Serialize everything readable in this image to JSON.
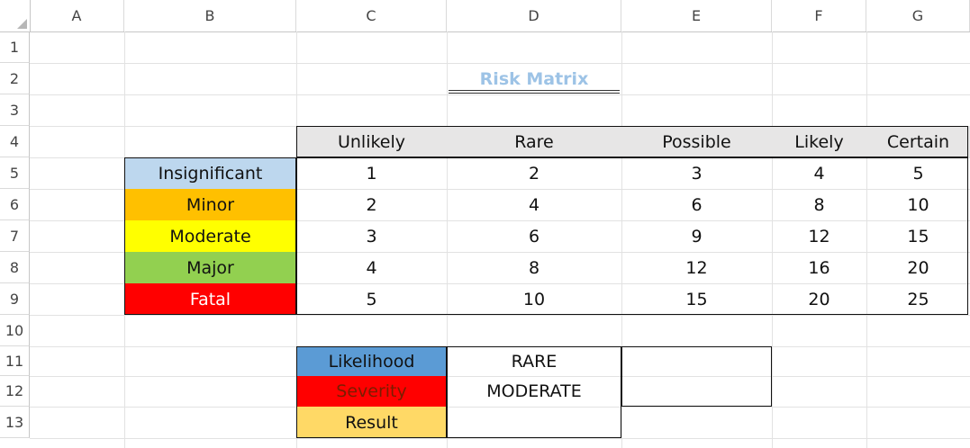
{
  "columns": [
    "A",
    "B",
    "C",
    "D",
    "E",
    "F",
    "G"
  ],
  "rows": [
    "1",
    "2",
    "3",
    "4",
    "5",
    "6",
    "7",
    "8",
    "9",
    "10",
    "11",
    "12",
    "13"
  ],
  "title": "Risk Matrix",
  "likelihood_headers": [
    "Unlikely",
    "Rare",
    "Possible",
    "Likely",
    "Certain"
  ],
  "severity_rows": [
    {
      "label": "Insignificant",
      "color": "#bdd7ee",
      "text_color": "#111111",
      "values": [
        "1",
        "2",
        "3",
        "4",
        "5"
      ]
    },
    {
      "label": "Minor",
      "color": "#ffc000",
      "text_color": "#111111",
      "values": [
        "2",
        "4",
        "6",
        "8",
        "10"
      ]
    },
    {
      "label": "Moderate",
      "color": "#ffff00",
      "text_color": "#111111",
      "values": [
        "3",
        "6",
        "9",
        "12",
        "15"
      ]
    },
    {
      "label": "Major",
      "color": "#92d050",
      "text_color": "#111111",
      "values": [
        "4",
        "8",
        "12",
        "16",
        "20"
      ]
    },
    {
      "label": "Fatal",
      "color": "#ff0000",
      "text_color": "#ffffff",
      "values": [
        "5",
        "10",
        "15",
        "20",
        "25"
      ]
    }
  ],
  "lookup": [
    {
      "label": "Likelihood",
      "color": "#5b9bd5",
      "text_color": "#111111",
      "value": "RARE"
    },
    {
      "label": "Severity",
      "color": "#ff0000",
      "text_color": "#7a1d00",
      "value": "MODERATE"
    },
    {
      "label": "Result",
      "color": "#ffd966",
      "text_color": "#111111",
      "value": ""
    }
  ],
  "header_fill": "#e7e6e6"
}
